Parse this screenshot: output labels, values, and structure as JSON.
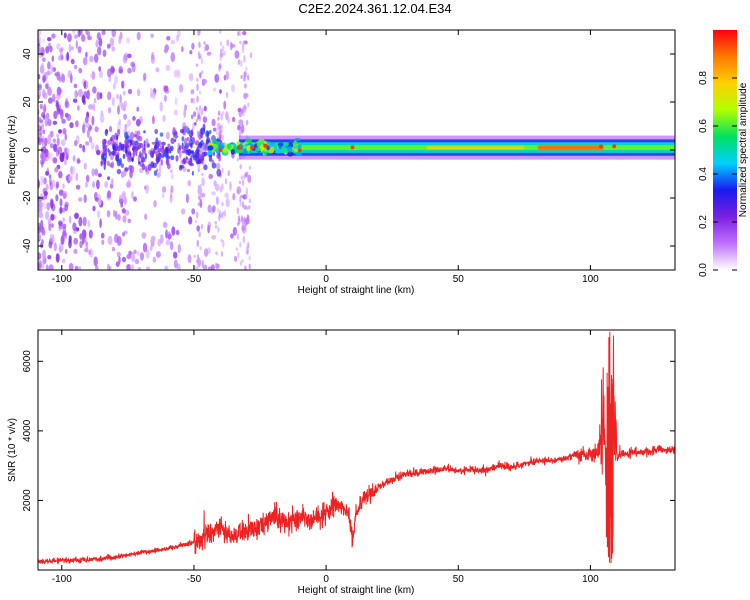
{
  "title": "C2E2.2024.361.12.04.E34",
  "chart_data": [
    {
      "type": "heatmap",
      "xlabel": "Height of straight line (km)",
      "ylabel": "Frequency (Hz)",
      "xlim": [
        -109,
        132
      ],
      "ylim": [
        -50,
        50
      ],
      "xticks": [
        -100,
        -50,
        0,
        50,
        100
      ],
      "yticks": [
        -40,
        -20,
        0,
        20,
        40
      ],
      "colorbar": {
        "label": "Normalized spectral amplitude",
        "range": [
          0,
          1
        ],
        "ticks": [
          0,
          0.2,
          0.4,
          0.6,
          0.8
        ],
        "tick_labels": [
          "0.0",
          "0.2",
          "0.4",
          "0.6",
          "0.8"
        ],
        "colormap": [
          "#ffffff",
          "#c070ff",
          "#7a20e0",
          "#1a1af0",
          "#00d0ff",
          "#00e060",
          "#b0ff00",
          "#ffd000",
          "#ff7a00",
          "#ff0010"
        ]
      },
      "band": {
        "center_frequency_hz": 1,
        "x_start": -45,
        "strong_segment_x": [
          80,
          105
        ],
        "noise_region_x": [
          -109,
          -29
        ]
      },
      "grid": false
    },
    {
      "type": "line",
      "xlabel": "Height of straight line (km)",
      "ylabel": "SNR (10 * v/v)",
      "xlim": [
        -109,
        132
      ],
      "ylim": [
        0,
        6900
      ],
      "xticks": [
        -100,
        -50,
        0,
        50,
        100
      ],
      "yticks": [
        2000,
        4000,
        6000
      ],
      "color": "#ee2222",
      "series": [
        {
          "x": [
            -109,
            -100,
            -90,
            -80,
            -70,
            -60,
            -50,
            -45,
            -40,
            -35,
            -30,
            -25,
            -20,
            -15,
            -10,
            -5,
            0,
            5,
            10,
            15,
            20,
            25,
            30,
            35,
            40,
            45,
            50,
            55,
            60,
            65,
            70,
            75,
            80,
            85,
            90,
            95,
            100,
            103,
            105,
            107,
            108,
            110,
            115,
            120,
            125,
            132
          ],
          "y": [
            250,
            270,
            300,
            350,
            500,
            620,
            800,
            1000,
            1200,
            1000,
            1100,
            1300,
            1500,
            1400,
            1500,
            1500,
            1600,
            1900,
            1500,
            2100,
            2400,
            2600,
            2750,
            2800,
            2850,
            2900,
            2850,
            2900,
            2850,
            3000,
            2950,
            3050,
            3150,
            3150,
            3200,
            3350,
            3300,
            3400,
            4500,
            1200,
            6000,
            3300,
            3350,
            3400,
            3450,
            3450
          ]
        }
      ],
      "grid": false
    }
  ]
}
